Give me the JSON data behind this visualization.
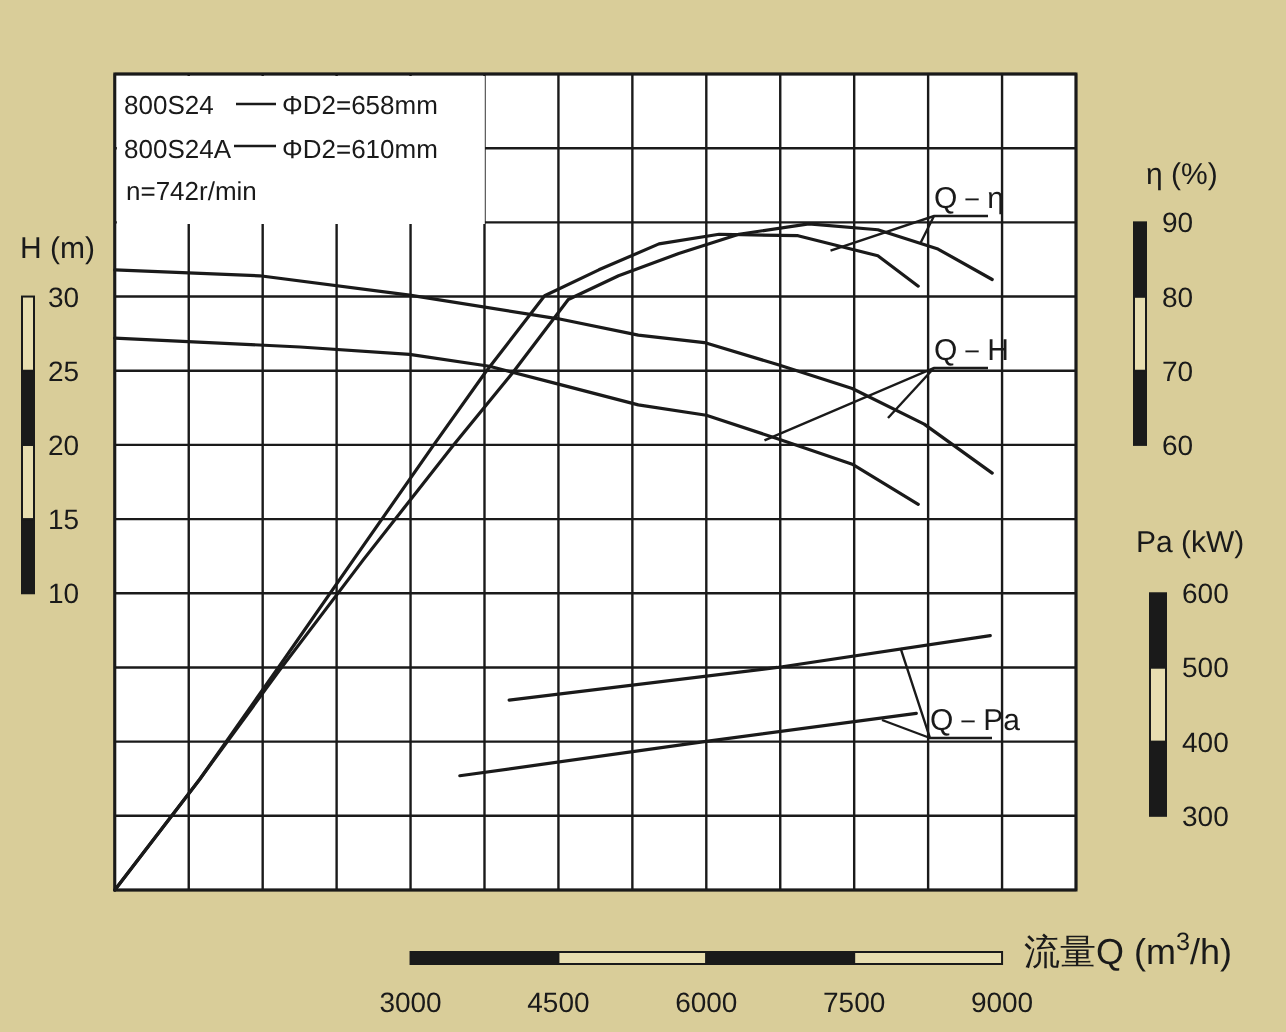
{
  "chart_data": {
    "type": "line",
    "xlabel": "流量Q (m$^{3}$/h)",
    "ylabel": "H (m)",
    "y2label": "η (%)",
    "y3label": "Pa (kW)",
    "xlim": [
      0,
      9750
    ],
    "xticks": [
      3000,
      4500,
      6000,
      7500,
      9000
    ],
    "ylim": [
      -10,
      45
    ],
    "yticks": [
      10,
      15,
      20,
      25,
      30
    ],
    "y2lim": [
      0,
      110
    ],
    "y2ticks": [
      60,
      70,
      80,
      90
    ],
    "y3lim": [
      200,
      1300
    ],
    "y3ticks": [
      300,
      400,
      500,
      600
    ],
    "grid": true,
    "series": [
      {
        "color": "#1a1a1a",
        "x": [
          0,
          1470,
          2990,
          4500,
          5310,
          5980,
          6730,
          7480,
          8210,
          8900
        ],
        "values": [
          31.8,
          31.4,
          30.1,
          28.5,
          27.4,
          26.9,
          25.4,
          23.8,
          21.4,
          18.1
        ]
      },
      {
        "color": "#1a1a1a",
        "x": [
          0,
          1880,
          2990,
          3800,
          4500,
          5310,
          6000,
          6730,
          7480,
          8150
        ],
        "values": [
          27.2,
          26.6,
          26.1,
          25.3,
          24.1,
          22.7,
          22.0,
          20.4,
          18.7,
          16.0
        ]
      },
      {
        "color": "#1a1a1a",
        "axis": "y2",
        "x": [
          0,
          860,
          1670,
          2520,
          3430,
          4040,
          4600,
          5110,
          5720,
          6330,
          7040,
          7740,
          8350,
          8900
        ],
        "values": [
          0,
          14.9,
          29.6,
          44.5,
          59.9,
          69.8,
          79.6,
          82.8,
          85.8,
          88.4,
          89.8,
          89.0,
          86.4,
          82.3
        ]
      },
      {
        "color": "#1a1a1a",
        "axis": "y2",
        "x": [
          0,
          860,
          1670,
          2420,
          3230,
          3760,
          4360,
          4910,
          5520,
          6130,
          6930,
          7740,
          8150
        ],
        "values": [
          0,
          14.9,
          30.2,
          44.5,
          59.9,
          69.8,
          80.1,
          83.6,
          87.1,
          88.4,
          88.2,
          85.5,
          81.4
        ]
      },
      {
        "color": "#1a1a1a",
        "axis": "y3",
        "x": [
          4000,
          6720,
          8880
        ],
        "values": [
          456,
          500,
          543
        ]
      },
      {
        "color": "#1a1a1a",
        "axis": "y3",
        "x": [
          3500,
          5980,
          8130
        ],
        "values": [
          354,
          400,
          438
        ]
      }
    ],
    "annotations": [
      "800S24",
      "ΦD2=658mm",
      "800S24A",
      "ΦD2=610mm",
      "n=742r/min",
      {
        "text": "Q－η",
        "x": 7260,
        "y": 33.1
      },
      {
        "text": "Q－H",
        "x": 6590,
        "y": 20.3
      },
      {
        "text": "Q－Pa",
        "x": 7970,
        "y": 6.3
      }
    ]
  }
}
